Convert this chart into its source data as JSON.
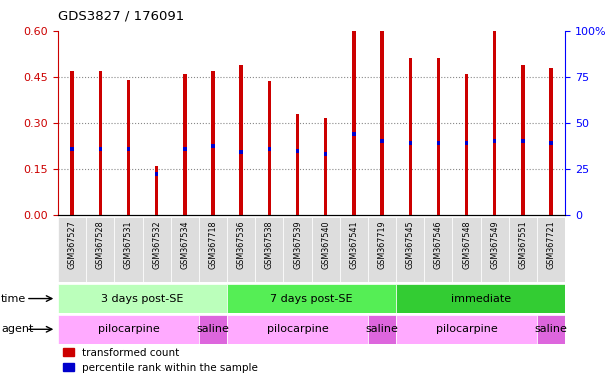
{
  "title": "GDS3827 / 176091",
  "samples": [
    "GSM367527",
    "GSM367528",
    "GSM367531",
    "GSM367532",
    "GSM367534",
    "GSM367718",
    "GSM367536",
    "GSM367538",
    "GSM367539",
    "GSM367540",
    "GSM367541",
    "GSM367719",
    "GSM367545",
    "GSM367546",
    "GSM367548",
    "GSM367549",
    "GSM367551",
    "GSM367721"
  ],
  "red_values": [
    0.47,
    0.47,
    0.44,
    0.16,
    0.46,
    0.47,
    0.49,
    0.435,
    0.33,
    0.315,
    0.63,
    0.62,
    0.51,
    0.51,
    0.46,
    0.6,
    0.49,
    0.48
  ],
  "blue_values": [
    0.215,
    0.215,
    0.215,
    0.135,
    0.215,
    0.225,
    0.205,
    0.215,
    0.21,
    0.2,
    0.265,
    0.24,
    0.235,
    0.235,
    0.235,
    0.24,
    0.24,
    0.235
  ],
  "ylim_left": [
    0,
    0.6
  ],
  "ylim_right": [
    0,
    100
  ],
  "yticks_left": [
    0,
    0.15,
    0.3,
    0.45,
    0.6
  ],
  "yticks_right": [
    0,
    25,
    50,
    75,
    100
  ],
  "time_groups": [
    {
      "label": "3 days post-SE",
      "start": 0,
      "end": 6,
      "color": "#bbffbb"
    },
    {
      "label": "7 days post-SE",
      "start": 6,
      "end": 12,
      "color": "#55ee55"
    },
    {
      "label": "immediate",
      "start": 12,
      "end": 18,
      "color": "#33cc33"
    }
  ],
  "agent_groups": [
    {
      "label": "pilocarpine",
      "start": 0,
      "end": 5,
      "color": "#ffaaff"
    },
    {
      "label": "saline",
      "start": 5,
      "end": 6,
      "color": "#dd66dd"
    },
    {
      "label": "pilocarpine",
      "start": 6,
      "end": 11,
      "color": "#ffaaff"
    },
    {
      "label": "saline",
      "start": 11,
      "end": 12,
      "color": "#dd66dd"
    },
    {
      "label": "pilocarpine",
      "start": 12,
      "end": 17,
      "color": "#ffaaff"
    },
    {
      "label": "saline",
      "start": 17,
      "end": 18,
      "color": "#dd66dd"
    }
  ],
  "legend_red": "transformed count",
  "legend_blue": "percentile rank within the sample",
  "bar_width": 0.12,
  "red_color": "#cc0000",
  "blue_color": "#0000cc",
  "bg_color": "#ffffff",
  "grid_color": "#888888",
  "sample_box_color": "#dddddd",
  "label_fontsize": 7,
  "tick_fontsize": 8
}
